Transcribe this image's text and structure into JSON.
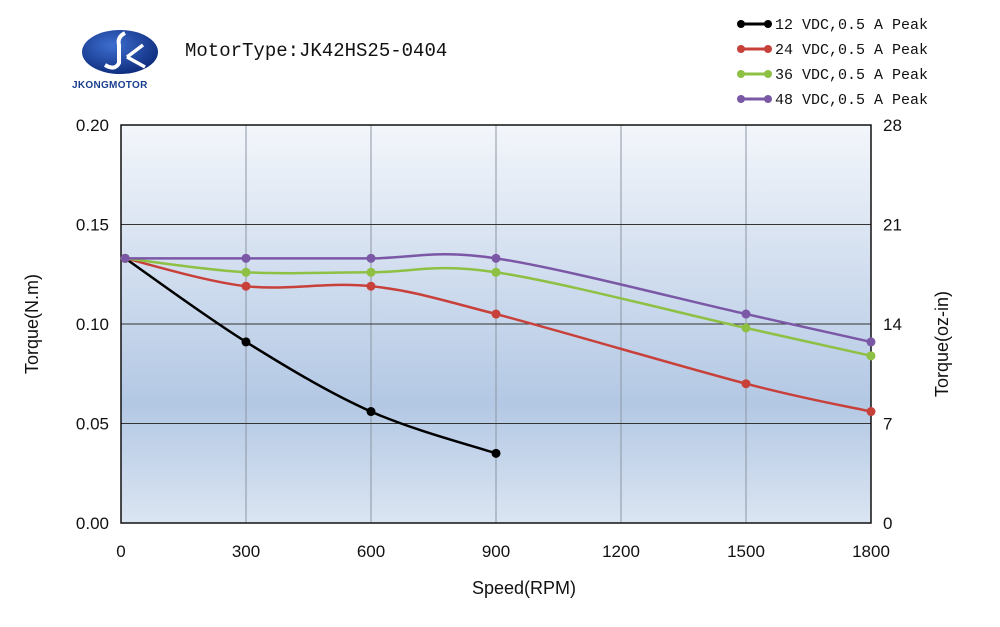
{
  "header": {
    "logo_text": "JKONGMOTOR",
    "motor_type": "MotorType:JK42HS25-0404"
  },
  "chart_data": {
    "type": "line",
    "title": "MotorType:JK42HS25-0404",
    "xlabel": "Speed(RPM)",
    "ylabel": "Torque(N.m)",
    "y2label": "Torque(oz-in)",
    "xlim": [
      0,
      1800
    ],
    "ylim": [
      0,
      0.2
    ],
    "y2lim": [
      0,
      28
    ],
    "xticks": [
      0,
      300,
      600,
      900,
      1200,
      1500,
      1800
    ],
    "yticks": [
      "0.00",
      "0.05",
      "0.10",
      "0.15",
      "0.20"
    ],
    "y2ticks": [
      "0",
      "7",
      "14",
      "21",
      "28"
    ],
    "grid": true,
    "legend_position": "top-right",
    "series": [
      {
        "name": "12 VDC,0.5 A Peak",
        "color": "#000000",
        "x": [
          10,
          300,
          600,
          900
        ],
        "y": [
          0.133,
          0.091,
          0.056,
          0.035
        ]
      },
      {
        "name": "24 VDC,0.5 A Peak",
        "color": "#c8403a",
        "x": [
          10,
          300,
          600,
          900,
          1500,
          1800
        ],
        "y": [
          0.133,
          0.119,
          0.119,
          0.105,
          0.07,
          0.056
        ]
      },
      {
        "name": "36 VDC,0.5 A Peak",
        "color": "#8dc043",
        "x": [
          10,
          300,
          600,
          900,
          1500,
          1800
        ],
        "y": [
          0.133,
          0.126,
          0.126,
          0.126,
          0.098,
          0.084
        ]
      },
      {
        "name": "48 VDC,0.5 A Peak",
        "color": "#7b58a6",
        "x": [
          10,
          300,
          600,
          900,
          1500,
          1800
        ],
        "y": [
          0.133,
          0.133,
          0.133,
          0.133,
          0.105,
          0.091
        ]
      }
    ]
  }
}
